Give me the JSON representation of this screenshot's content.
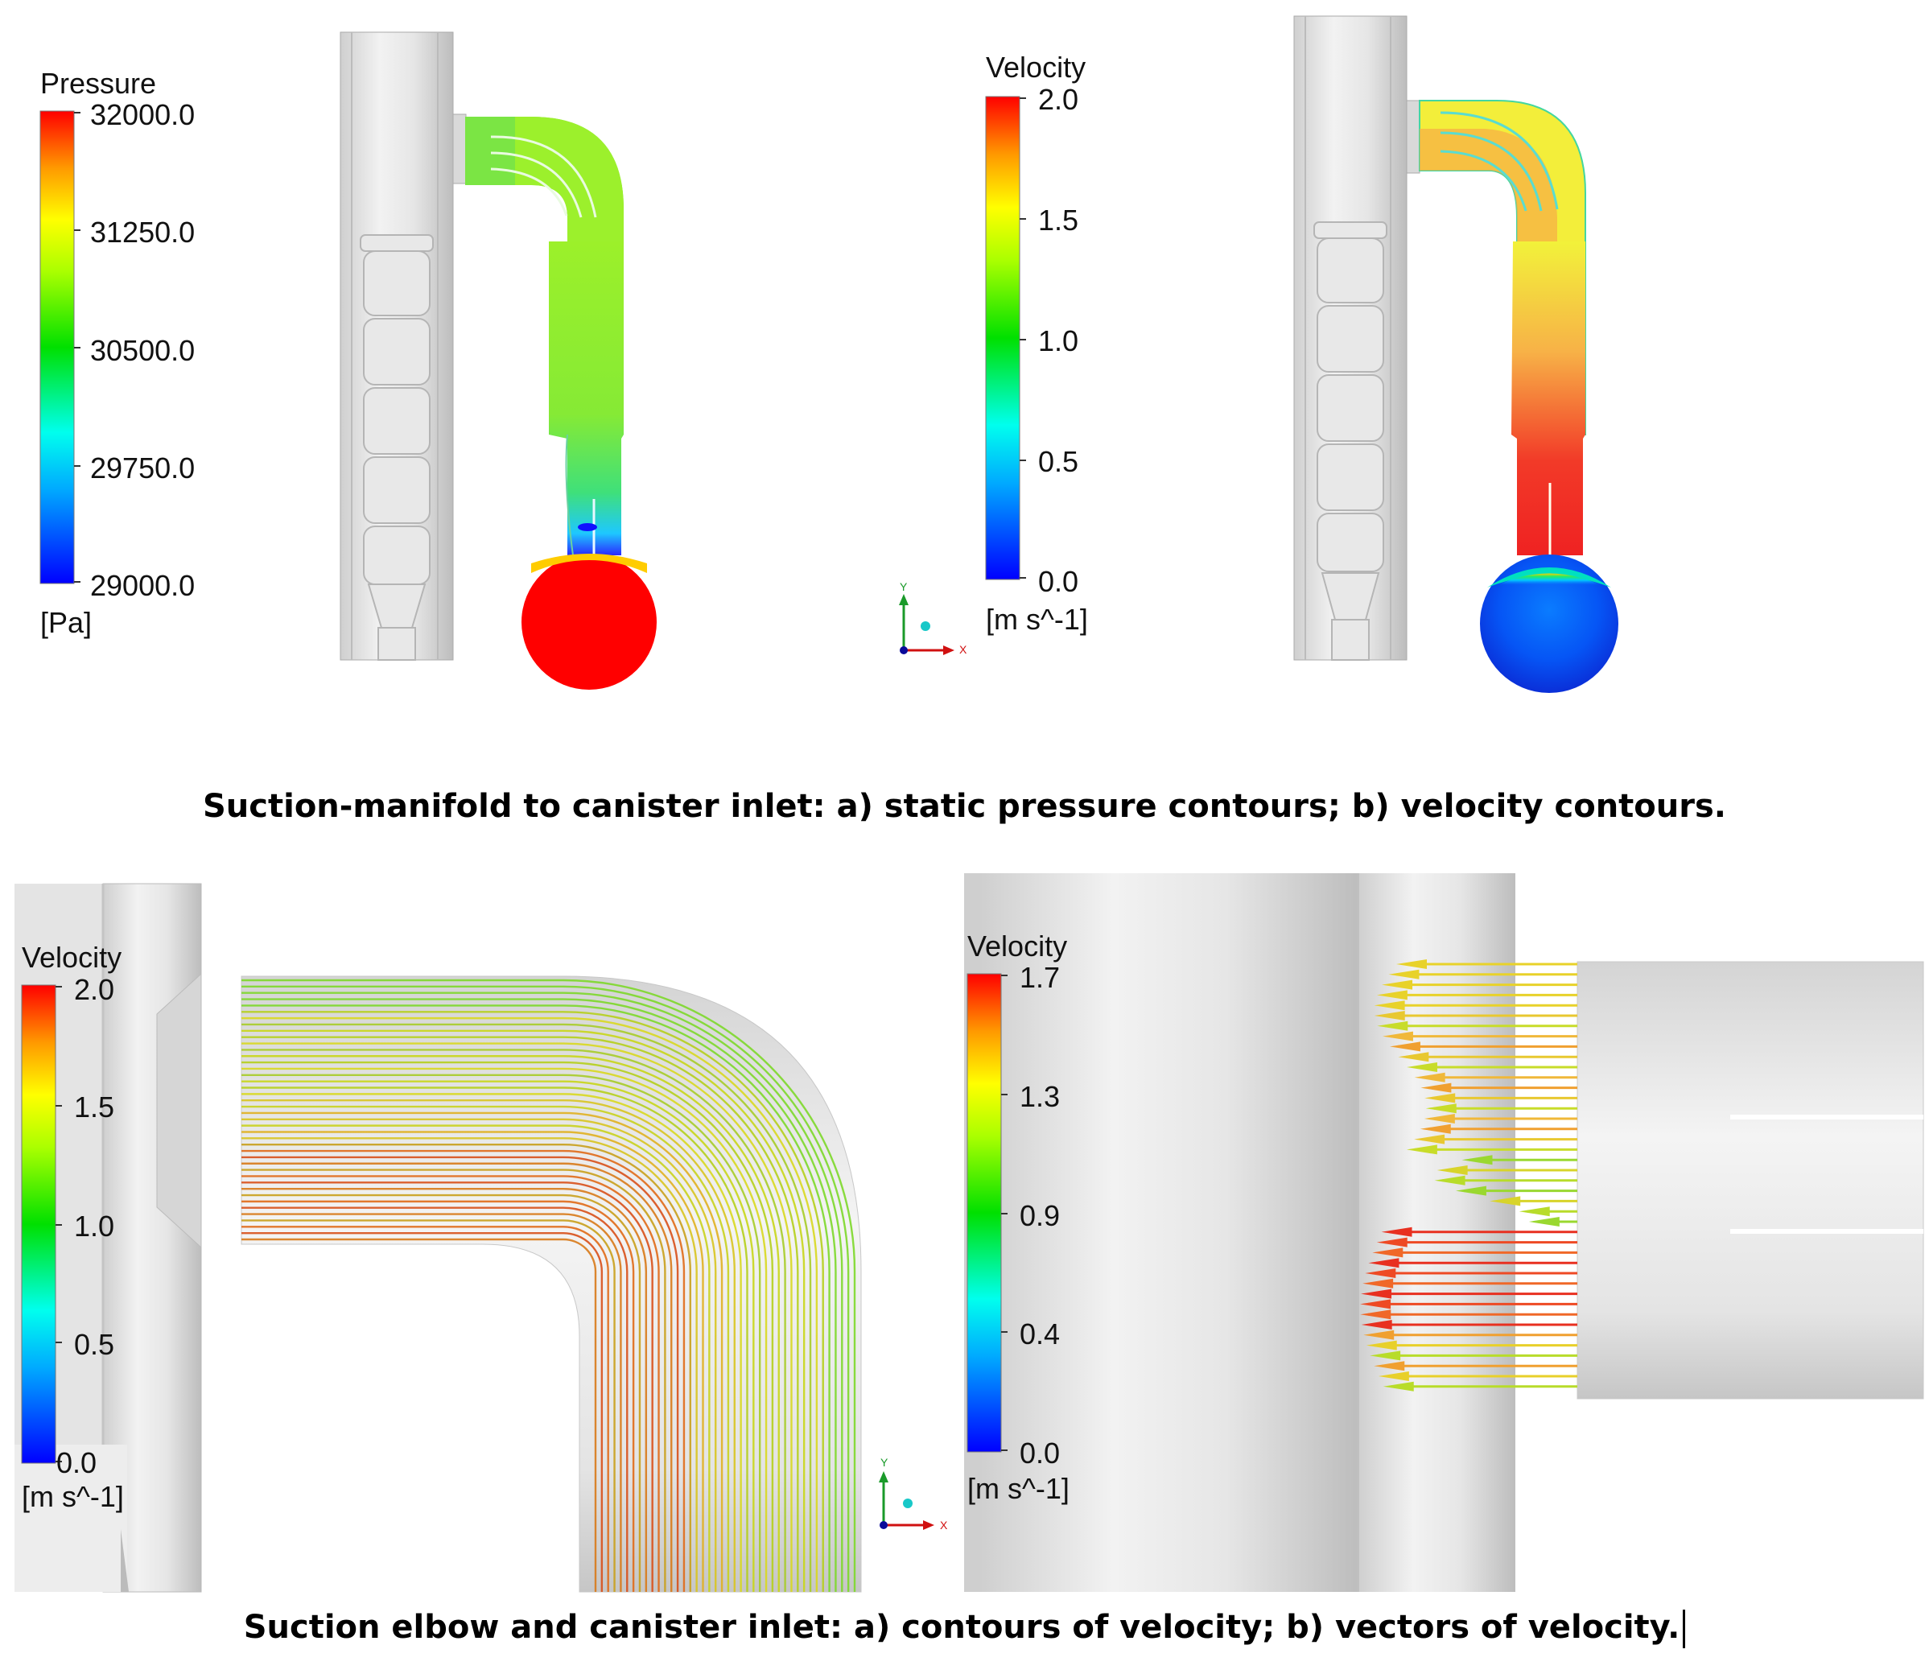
{
  "panels": {
    "pressure": {
      "legend_title": "Pressure",
      "ticks": [
        "32000.0",
        "31250.0",
        "30500.0",
        "29750.0",
        "29000.0"
      ],
      "unit": "[Pa]"
    },
    "velocity_top": {
      "legend_title": "Velocity",
      "ticks": [
        "2.0",
        "1.5",
        "1.0",
        "0.5",
        "0.0"
      ],
      "unit": "[m s^-1]"
    },
    "velocity_streamlines": {
      "legend_title": "Velocity",
      "ticks": [
        "2.0",
        "1.5",
        "1.0",
        "0.5",
        "0.0"
      ],
      "unit": "[m s^-1]"
    },
    "velocity_vectors": {
      "legend_title": "Velocity",
      "ticks": [
        "1.7",
        "1.3",
        "0.9",
        "0.4",
        "0.0"
      ],
      "unit": "[m s^-1]"
    }
  },
  "axes": {
    "x": "X",
    "y": "Y"
  },
  "captions": {
    "top": "Suction-manifold to canister inlet: a) static pressure contours; b) velocity contours.",
    "bottom": "Suction elbow and canister inlet: a) contours of velocity; b) vectors of velocity."
  }
}
